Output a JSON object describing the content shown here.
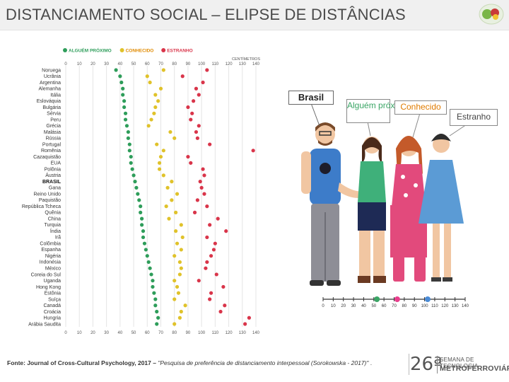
{
  "page": {
    "title": "DISTANCIAMENTO SOCIAL – ELIPSE DE DISTÂNCIAS"
  },
  "chart_data": {
    "type": "scatter",
    "unit_label": "CENTÍMETROS",
    "ticks": [
      0,
      10,
      20,
      30,
      40,
      50,
      60,
      70,
      80,
      90,
      100,
      110,
      120,
      130,
      140
    ],
    "xlim": [
      0,
      140
    ],
    "legend": [
      {
        "key": "proximo",
        "label": "ALGUÉM PRÓXIMO",
        "color": "#2e9d5a"
      },
      {
        "key": "conhecido",
        "label": "CONHECIDO",
        "color": "#e0c22a",
        "text_color": "#e08a00"
      },
      {
        "key": "estranho",
        "label": "ESTRANHO",
        "color": "#d9354a"
      }
    ],
    "highlight_country": "BRASIL",
    "countries": [
      "Noruega",
      "Ucrânia",
      "Argentina",
      "Alemanha",
      "Itália",
      "Eslováquia",
      "Bulgária",
      "Sérvia",
      "Peru",
      "Grécia",
      "Malásia",
      "Rússia",
      "Portugal",
      "Romênia",
      "Cazaquistão",
      "EUA",
      "Polônia",
      "Áustria",
      "BRASIL",
      "Gana",
      "Reino Unido",
      "Paquistão",
      "República Tcheca",
      "Quênia",
      "China",
      "Turquia",
      "Índia",
      "Irã",
      "Colômbia",
      "Espanha",
      "Nigéria",
      "Indonésia",
      "México",
      "Coreia do Sul",
      "Uganda",
      "Hong Kong",
      "Estônia",
      "Suíça",
      "Canadá",
      "Croácia",
      "Hungria",
      "Arábia Saudita"
    ],
    "series": [
      {
        "name": "ALGUÉM PRÓXIMO",
        "values": [
          37,
          40,
          41,
          42,
          42,
          43,
          43,
          44,
          44,
          45,
          46,
          46,
          47,
          47,
          48,
          48,
          49,
          50,
          51,
          52,
          53,
          54,
          55,
          55,
          56,
          56,
          57,
          57,
          58,
          59,
          60,
          61,
          62,
          63,
          64,
          64,
          65,
          66,
          66,
          67,
          68,
          67
        ]
      },
      {
        "name": "CONHECIDO",
        "values": [
          72,
          60,
          62,
          70,
          66,
          68,
          66,
          65,
          63,
          61,
          77,
          80,
          67,
          72,
          70,
          69,
          69,
          72,
          78,
          75,
          82,
          78,
          74,
          81,
          76,
          85,
          81,
          86,
          82,
          85,
          80,
          84,
          85,
          84,
          80,
          82,
          83,
          80,
          88,
          85,
          84,
          80
        ]
      },
      {
        "name": "ESTRANHO",
        "values": [
          104,
          86,
          101,
          96,
          98,
          94,
          90,
          93,
          92,
          98,
          96,
          97,
          106,
          138,
          90,
          92,
          101,
          102,
          99,
          100,
          102,
          97,
          104,
          95,
          112,
          106,
          118,
          104,
          110,
          109,
          107,
          104,
          103,
          111,
          98,
          116,
          107,
          106,
          117,
          114,
          135,
          132
        ]
      }
    ]
  },
  "illustration": {
    "callouts": {
      "brasil": "Brasil",
      "proximo": "Alguém próximo",
      "conhecido": "Conhecido",
      "estranho": "Estranho"
    },
    "ruler_ticks": [
      0,
      10,
      20,
      30,
      40,
      50,
      60,
      70,
      80,
      90,
      100,
      110,
      120,
      130,
      140
    ]
  },
  "footer": {
    "source_bold": "Fonte: Journal of Cross-Cultural Psychology, 2017 –",
    "source_italic": "\"Pesquisa de preferência de distanciamento interpessoal (Sorokowska - 2017)\"",
    "dot": "."
  },
  "event": {
    "edition": "26ª",
    "line1": "SEMANA DE TECNOLOGIA",
    "line2": "METROFERROVIÁRIA"
  },
  "colors": {
    "proximo": "#2e9d5a",
    "conhecido": "#e0c22a",
    "estranho": "#d9354a",
    "ruler_proximo": "#3aa565",
    "ruler_conhecido": "#e83e8c",
    "ruler_estranho": "#4a8bd6"
  }
}
